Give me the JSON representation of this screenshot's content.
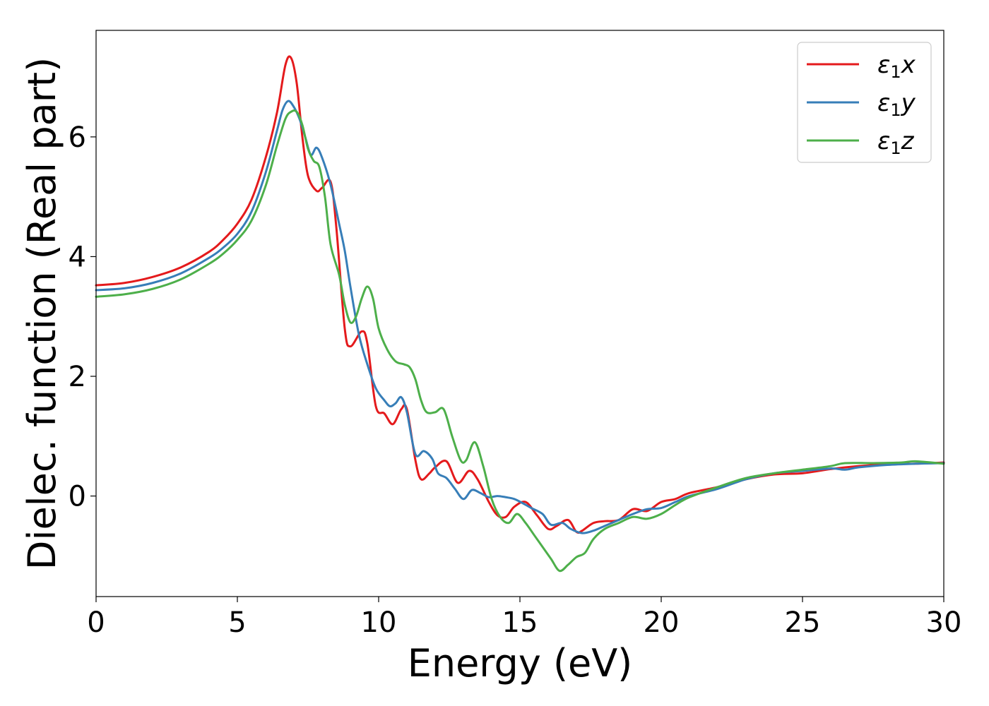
{
  "chart_data": {
    "type": "line",
    "title": "",
    "xlabel": "Energy (eV)",
    "ylabel": "Dielec. function (Real part)",
    "xlim": [
      0,
      30
    ],
    "ylim": [
      -1.68,
      7.78
    ],
    "xticks": [
      0,
      5,
      10,
      15,
      20,
      25,
      30
    ],
    "yticks": [
      0,
      2,
      4,
      6
    ],
    "grid": false,
    "legend": {
      "position": "top-right"
    },
    "series": [
      {
        "name": "ε₁x",
        "legend_main": "ε",
        "legend_sub": "1",
        "legend_tail": "x",
        "color": "#e41a1c",
        "x": [
          0,
          1,
          2,
          3,
          4,
          4.5,
          5,
          5.5,
          6,
          6.4,
          6.7,
          6.9,
          7.1,
          7.3,
          7.5,
          7.8,
          8.0,
          8.3,
          8.5,
          8.8,
          9.0,
          9.4,
          9.6,
          9.9,
          10.2,
          10.5,
          10.8,
          11.0,
          11.3,
          11.5,
          11.8,
          12.0,
          12.4,
          12.8,
          13.2,
          13.5,
          13.9,
          14.2,
          14.5,
          14.8,
          15.2,
          15.6,
          16.0,
          16.3,
          16.7,
          17.0,
          17.2,
          17.6,
          18.0,
          18.5,
          19.0,
          19.5,
          20.0,
          20.5,
          21.0,
          22.0,
          23.0,
          24.0,
          25.0,
          26.0,
          27.0,
          28.0,
          29.0,
          30.0
        ],
        "y": [
          3.52,
          3.56,
          3.66,
          3.82,
          4.08,
          4.28,
          4.55,
          4.95,
          5.65,
          6.4,
          7.2,
          7.32,
          6.9,
          6.0,
          5.35,
          5.1,
          5.15,
          5.25,
          4.5,
          2.8,
          2.5,
          2.75,
          2.55,
          1.5,
          1.38,
          1.2,
          1.45,
          1.45,
          0.6,
          0.28,
          0.38,
          0.48,
          0.58,
          0.22,
          0.42,
          0.28,
          -0.1,
          -0.32,
          -0.35,
          -0.18,
          -0.1,
          -0.32,
          -0.55,
          -0.5,
          -0.4,
          -0.6,
          -0.58,
          -0.45,
          -0.42,
          -0.4,
          -0.22,
          -0.25,
          -0.1,
          -0.05,
          0.05,
          0.15,
          0.28,
          0.36,
          0.38,
          0.45,
          0.5,
          0.53,
          0.54,
          0.56
        ]
      },
      {
        "name": "ε₁y",
        "legend_main": "ε",
        "legend_sub": "1",
        "legend_tail": "y",
        "color": "#377eb8",
        "x": [
          0,
          1,
          2,
          3,
          4,
          4.5,
          5,
          5.5,
          6,
          6.4,
          6.6,
          6.8,
          7.0,
          7.2,
          7.4,
          7.6,
          7.8,
          8.0,
          8.3,
          8.6,
          8.8,
          9.0,
          9.3,
          9.6,
          9.9,
          10.2,
          10.4,
          10.6,
          10.8,
          11.0,
          11.3,
          11.6,
          11.9,
          12.1,
          12.4,
          12.7,
          13.0,
          13.3,
          13.6,
          13.9,
          14.2,
          14.5,
          14.8,
          15.1,
          15.4,
          15.8,
          16.1,
          16.5,
          16.8,
          17.2,
          17.6,
          18.0,
          18.5,
          19.0,
          19.5,
          20.0,
          20.5,
          21.0,
          22.0,
          23.0,
          24.0,
          25.0,
          26.0,
          26.5,
          27.0,
          28.0,
          29.0,
          30.0
        ],
        "y": [
          3.44,
          3.47,
          3.56,
          3.72,
          3.98,
          4.15,
          4.38,
          4.75,
          5.4,
          6.1,
          6.45,
          6.6,
          6.5,
          6.3,
          6.0,
          5.7,
          5.82,
          5.65,
          5.2,
          4.55,
          4.1,
          3.5,
          2.7,
          2.2,
          1.8,
          1.6,
          1.5,
          1.55,
          1.65,
          1.4,
          0.7,
          0.75,
          0.62,
          0.38,
          0.3,
          0.12,
          -0.05,
          0.1,
          0.05,
          -0.02,
          0.0,
          -0.02,
          -0.05,
          -0.12,
          -0.2,
          -0.3,
          -0.48,
          -0.45,
          -0.55,
          -0.62,
          -0.58,
          -0.5,
          -0.4,
          -0.3,
          -0.22,
          -0.2,
          -0.1,
          0.0,
          0.12,
          0.28,
          0.38,
          0.42,
          0.46,
          0.44,
          0.48,
          0.52,
          0.54,
          0.55
        ]
      },
      {
        "name": "ε₁z",
        "legend_main": "ε",
        "legend_sub": "1",
        "legend_tail": "z",
        "color": "#4daf4a",
        "x": [
          0,
          1,
          2,
          3,
          4,
          4.5,
          5,
          5.5,
          6,
          6.4,
          6.7,
          6.9,
          7.1,
          7.3,
          7.5,
          7.7,
          7.9,
          8.1,
          8.3,
          8.6,
          8.8,
          9.0,
          9.2,
          9.4,
          9.6,
          9.8,
          10.0,
          10.3,
          10.6,
          10.9,
          11.1,
          11.3,
          11.5,
          11.7,
          12.0,
          12.3,
          12.6,
          12.9,
          13.1,
          13.4,
          13.7,
          14.0,
          14.3,
          14.6,
          14.9,
          15.2,
          15.5,
          15.8,
          16.1,
          16.4,
          16.7,
          17.0,
          17.3,
          17.6,
          18.0,
          18.5,
          19.0,
          19.5,
          20.0,
          20.5,
          21.0,
          22.0,
          23.0,
          24.0,
          25.0,
          26.0,
          26.5,
          27.5,
          28.5,
          29.0,
          30.0
        ],
        "y": [
          3.33,
          3.37,
          3.46,
          3.62,
          3.88,
          4.05,
          4.28,
          4.6,
          5.18,
          5.85,
          6.3,
          6.42,
          6.42,
          6.2,
          5.8,
          5.6,
          5.5,
          5.0,
          4.2,
          3.7,
          3.2,
          2.9,
          3.0,
          3.3,
          3.5,
          3.3,
          2.8,
          2.45,
          2.25,
          2.2,
          2.15,
          1.95,
          1.6,
          1.4,
          1.4,
          1.45,
          1.0,
          0.6,
          0.6,
          0.9,
          0.5,
          -0.05,
          -0.35,
          -0.45,
          -0.3,
          -0.45,
          -0.65,
          -0.85,
          -1.05,
          -1.25,
          -1.15,
          -1.02,
          -0.95,
          -0.72,
          -0.55,
          -0.45,
          -0.35,
          -0.38,
          -0.3,
          -0.15,
          -0.02,
          0.15,
          0.3,
          0.38,
          0.44,
          0.5,
          0.55,
          0.55,
          0.56,
          0.58,
          0.54
        ]
      }
    ]
  }
}
